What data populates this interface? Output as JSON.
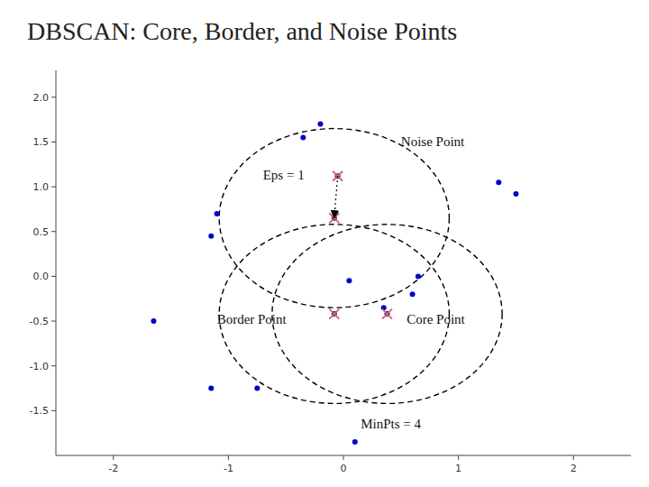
{
  "chart_data": {
    "type": "scatter",
    "title": "DBSCAN: Core, Border, and Noise Points",
    "xlim": [
      -2.5,
      2.5
    ],
    "ylim": [
      -2.0,
      2.3
    ],
    "xticks": [
      -2,
      -1,
      0,
      1,
      2
    ],
    "yticks": [
      -1.5,
      {
        "value": -1,
        "label": "-1.0"
      },
      -0.5,
      {
        "value": 0,
        "label": "0.0"
      },
      0.5,
      {
        "value": 1,
        "label": "1.0"
      },
      1.5,
      {
        "value": 2,
        "label": "2.0"
      }
    ],
    "series": [
      {
        "x": [
          -0.2,
          -0.35,
          -1.1,
          -1.15,
          1.35,
          1.5,
          0.05,
          0.65,
          0.6,
          0.35,
          -1.65,
          -1.15,
          -0.75,
          0.1
        ],
        "y": [
          1.7,
          1.55,
          0.7,
          0.45,
          1.05,
          0.92,
          -0.05,
          0.0,
          -0.2,
          -0.35,
          -0.5,
          -1.25,
          -1.25,
          -1.85
        ],
        "color": "#0000cc",
        "marker": "circle"
      },
      {
        "x": [
          -0.08,
          0.38,
          -0.08,
          -0.05
        ],
        "y": [
          0.65,
          -0.42,
          -0.42,
          1.12
        ],
        "color": "#330055",
        "marker": "circle"
      },
      {
        "x": [
          -0.08,
          0.38,
          -0.08,
          -0.05
        ],
        "y": [
          0.65,
          -0.42,
          -0.42,
          1.12
        ],
        "color": "#cc6688",
        "marker": "x"
      }
    ],
    "circles": [
      {
        "cx": -0.08,
        "cy": 0.65,
        "r": 1.0
      },
      {
        "cx": 0.38,
        "cy": -0.42,
        "r": 1.0
      },
      {
        "cx": -0.08,
        "cy": -0.42,
        "r": 1.0
      }
    ],
    "arrow": {
      "start": [
        -0.05,
        1.12
      ],
      "end": [
        -0.08,
        0.65
      ]
    },
    "annotations": [
      {
        "text": "Eps = 1",
        "x": -0.7,
        "y": 1.13
      },
      {
        "text": "Noise Point",
        "x": 0.5,
        "y": 1.5
      },
      {
        "text": "Border Point",
        "x": -1.1,
        "y": -0.48
      },
      {
        "text": "Core Point",
        "x": 0.55,
        "y": -0.48
      },
      {
        "text": "MinPts = 4",
        "x": 0.15,
        "y": -1.65
      }
    ]
  }
}
